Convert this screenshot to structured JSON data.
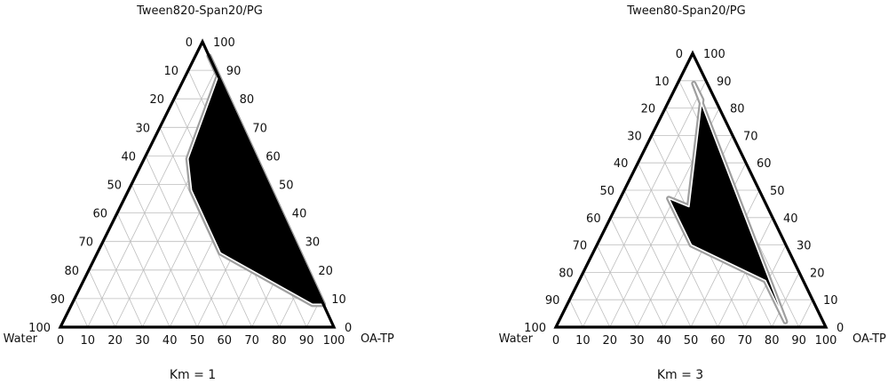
{
  "chart_data": [
    {
      "type": "ternary",
      "title": "Tween820-Span20/PG",
      "caption": "Km = 1",
      "apex_label": "Tween820-Span20/PG",
      "left_label": "Water",
      "right_label": "OA-TP",
      "ticks": [
        "0",
        "10",
        "20",
        "30",
        "40",
        "50",
        "60",
        "70",
        "80",
        "90",
        "100"
      ],
      "grid": true,
      "region_fill": "#000000",
      "region": [
        {
          "water": 0,
          "oa_tp": 5
        },
        {
          "water": 0,
          "oa_tp": 12
        },
        {
          "water": 25,
          "oa_tp": 16
        },
        {
          "water": 29,
          "oa_tp": 23
        },
        {
          "water": 29,
          "oa_tp": 45
        },
        {
          "water": 4,
          "oa_tp": 88
        },
        {
          "water": 0,
          "oa_tp": 92
        }
      ]
    },
    {
      "type": "ternary",
      "title": "Tween80-Span20/PG",
      "caption": "Km = 3",
      "apex_label": "Tween80-Span20/PG",
      "left_label": "Water",
      "right_label": "OA-TP",
      "ticks": [
        "0",
        "10",
        "20",
        "30",
        "40",
        "50",
        "60",
        "70",
        "80",
        "90",
        "100"
      ],
      "grid": true,
      "region_fill": "#000000",
      "region": [
        {
          "water": 5,
          "oa_tp": 6
        },
        {
          "water": 5,
          "oa_tp": 12
        },
        {
          "water": 29,
          "oa_tp": 27
        },
        {
          "water": 35,
          "oa_tp": 18
        },
        {
          "water": 35,
          "oa_tp": 35
        },
        {
          "water": 14,
          "oa_tp": 69
        },
        {
          "water": 14,
          "oa_tp": 84
        }
      ]
    }
  ]
}
